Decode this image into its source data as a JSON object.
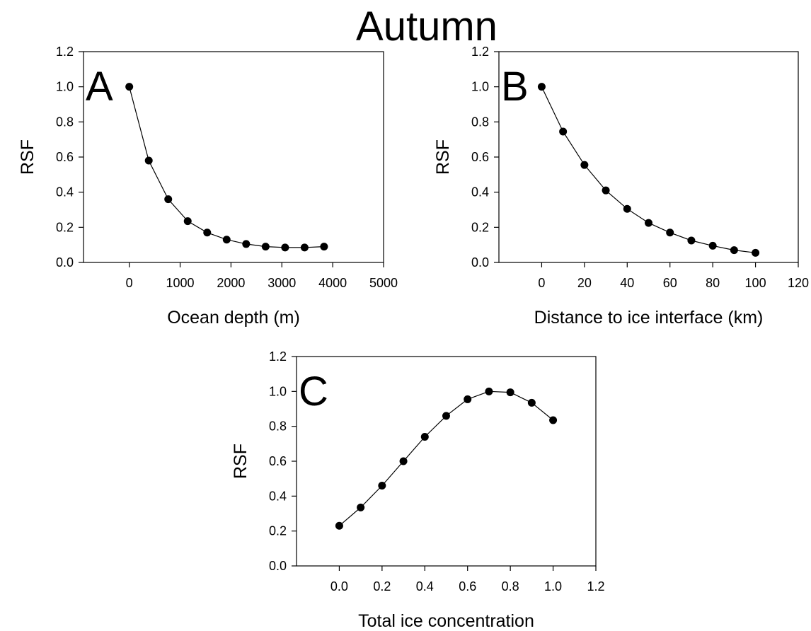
{
  "figure_title": "Autumn",
  "chart_data": [
    {
      "type": "line",
      "panel": "A",
      "title": "",
      "xlabel": "Ocean depth (m)",
      "ylabel": "RSF",
      "xlim": [
        -900,
        5000
      ],
      "ylim": [
        0,
        1.2
      ],
      "xticks": [
        "0",
        "1000",
        "2000",
        "3000",
        "4000",
        "5000"
      ],
      "yticks": [
        "0.0",
        "0.2",
        "0.4",
        "0.6",
        "0.8",
        "1.0",
        "1.2"
      ],
      "grid": false,
      "legend": "none",
      "series": [
        {
          "x": [
            0,
            383,
            766,
            1149,
            1532,
            1915,
            2298,
            2681,
            3064,
            3447,
            3830
          ],
          "y": [
            1.0,
            0.58,
            0.36,
            0.235,
            0.17,
            0.13,
            0.105,
            0.09,
            0.085,
            0.085,
            0.09
          ]
        }
      ]
    },
    {
      "type": "line",
      "panel": "B",
      "title": "",
      "xlabel": "Distance to ice interface (km)",
      "ylabel": "RSF",
      "xlim": [
        -20,
        120
      ],
      "ylim": [
        0,
        1.2
      ],
      "xticks": [
        "0",
        "20",
        "40",
        "60",
        "80",
        "100",
        "120"
      ],
      "yticks": [
        "0.0",
        "0.2",
        "0.4",
        "0.6",
        "0.8",
        "1.0",
        "1.2"
      ],
      "grid": false,
      "legend": "none",
      "series": [
        {
          "x": [
            0,
            10,
            20,
            30,
            40,
            50,
            60,
            70,
            80,
            90,
            100
          ],
          "y": [
            1.0,
            0.745,
            0.555,
            0.41,
            0.305,
            0.225,
            0.17,
            0.125,
            0.095,
            0.07,
            0.055
          ]
        }
      ]
    },
    {
      "type": "line",
      "panel": "C",
      "title": "",
      "xlabel": "Total ice concentration",
      "ylabel": "RSF",
      "xlim": [
        -0.2,
        1.2
      ],
      "ylim": [
        0,
        1.2
      ],
      "xticks": [
        "0.0",
        "0.2",
        "0.4",
        "0.6",
        "0.8",
        "1.0",
        "1.2"
      ],
      "yticks": [
        "0.0",
        "0.2",
        "0.4",
        "0.6",
        "0.8",
        "1.0",
        "1.2"
      ],
      "grid": false,
      "legend": "none",
      "series": [
        {
          "x": [
            0.0,
            0.1,
            0.2,
            0.3,
            0.4,
            0.5,
            0.6,
            0.7,
            0.8,
            0.9,
            1.0
          ],
          "y": [
            0.23,
            0.335,
            0.46,
            0.6,
            0.74,
            0.86,
            0.955,
            1.0,
            0.995,
            0.935,
            0.835
          ]
        }
      ]
    }
  ]
}
